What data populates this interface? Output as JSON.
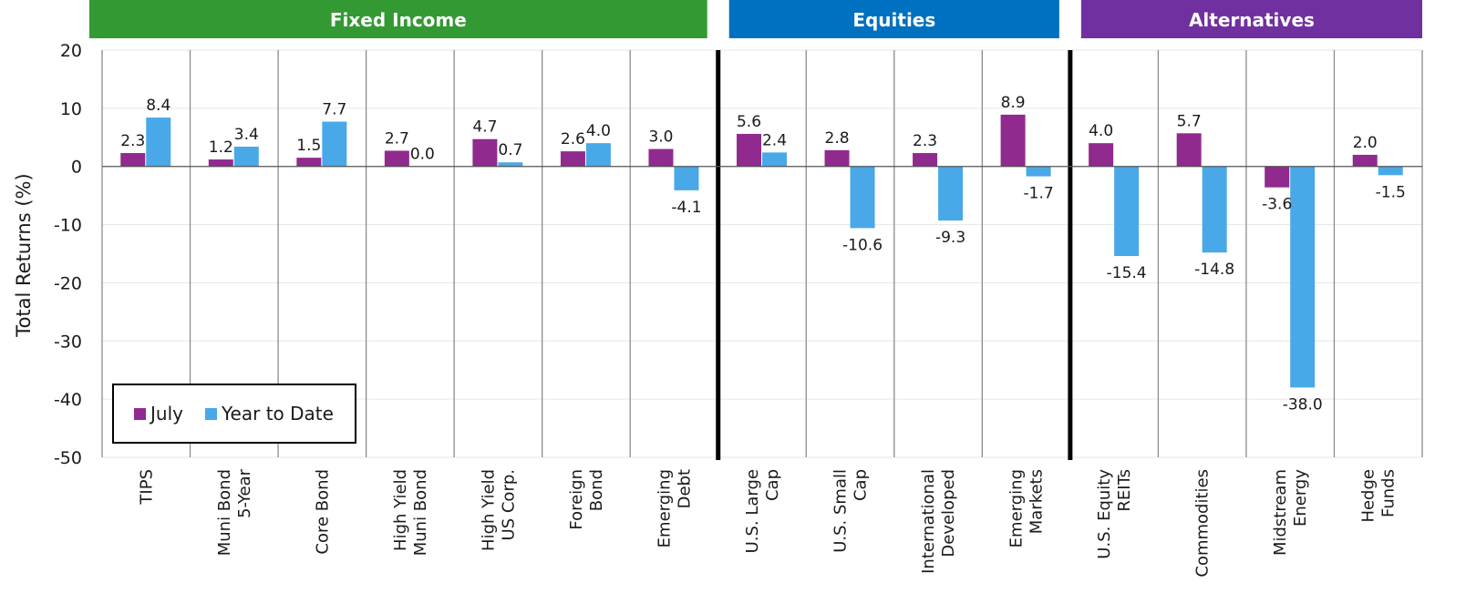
{
  "chart_data": {
    "type": "bar",
    "ylabel": "Total Returns (%)",
    "ylim": [
      -50,
      20
    ],
    "yticks": [
      20,
      10,
      0,
      -10,
      -20,
      -30,
      -40,
      -50
    ],
    "grid": true,
    "legend_position": "bottom-left",
    "groups": [
      {
        "name": "Fixed Income",
        "color": "#339933",
        "start": 0,
        "end": 6
      },
      {
        "name": "Equities",
        "color": "#0070C0",
        "start": 7,
        "end": 10
      },
      {
        "name": "Alternatives",
        "color": "#7030A0",
        "start": 11,
        "end": 14
      }
    ],
    "categories": [
      [
        "TIPS"
      ],
      [
        "Muni Bond",
        "5-Year"
      ],
      [
        "Core Bond"
      ],
      [
        "High Yield",
        "Muni Bond"
      ],
      [
        "High Yield",
        "US Corp."
      ],
      [
        "Foreign",
        "Bond"
      ],
      [
        "Emerging",
        "Debt"
      ],
      [
        "U.S. Large",
        "Cap"
      ],
      [
        "U.S. Small",
        "Cap"
      ],
      [
        "International",
        "Developed"
      ],
      [
        "Emerging",
        "Markets"
      ],
      [
        "U.S. Equity",
        "REITs"
      ],
      [
        "Commodities"
      ],
      [
        "Midstream",
        "Energy"
      ],
      [
        "Hedge",
        "Funds"
      ]
    ],
    "series": [
      {
        "name": "July",
        "color": "#902A8E",
        "values": [
          2.3,
          1.2,
          1.5,
          2.7,
          4.7,
          2.6,
          3.0,
          5.6,
          2.8,
          2.3,
          8.9,
          4.0,
          5.7,
          -3.6,
          2.0
        ]
      },
      {
        "name": "Year to Date",
        "color": "#49A8E8",
        "values": [
          8.4,
          3.4,
          7.7,
          0.0,
          0.7,
          4.0,
          -4.1,
          2.4,
          -10.6,
          -9.3,
          -1.7,
          -15.4,
          -14.8,
          -38.0,
          -1.5
        ]
      }
    ]
  }
}
